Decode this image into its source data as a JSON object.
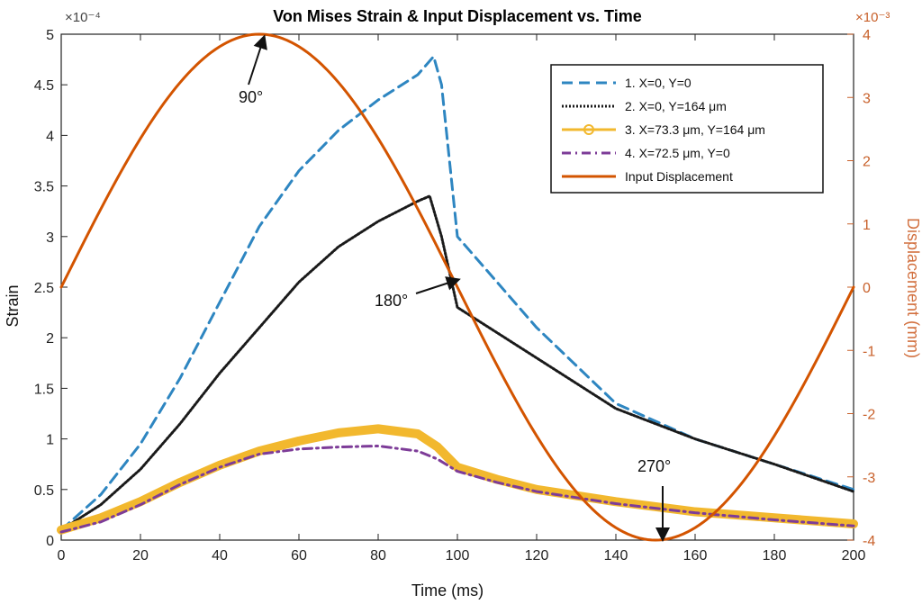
{
  "chart_data": {
    "type": "line",
    "title": "Von Mises Strain & Input Displacement vs. Time",
    "xlabel": "Time (ms)",
    "ylabel": "Strain",
    "y2label": "Displacement (mm)",
    "xlim": [
      0,
      200
    ],
    "ylim": [
      0,
      5
    ],
    "y2lim": [
      -4,
      4
    ],
    "y_multiplier": "×10⁻⁴",
    "y2_multiplier": "×10⁻³",
    "x_ticks": [
      0,
      20,
      40,
      60,
      80,
      100,
      120,
      140,
      160,
      180,
      200
    ],
    "y_ticks": [
      0,
      0.5,
      1,
      1.5,
      2,
      2.5,
      3,
      3.5,
      4,
      4.5,
      5
    ],
    "y_tick_labels": [
      "0",
      "0.5",
      "1",
      "1.5",
      "2",
      "2.5",
      "3",
      "3.5",
      "4",
      "4.5",
      "5"
    ],
    "y2_ticks": [
      -4,
      -3,
      -2,
      -1,
      0,
      1,
      2,
      3,
      4
    ],
    "y2_tick_labels": [
      "-4",
      "-3",
      "-2",
      "-1",
      "0",
      "1",
      "2",
      "3",
      "4"
    ],
    "legend_position": "top-right",
    "series": [
      {
        "name": "1. X=0, Y=0",
        "axis": "left",
        "color": "#2e86c1",
        "style": "dashed",
        "x": [
          0,
          10,
          20,
          30,
          40,
          50,
          60,
          70,
          80,
          90,
          94,
          96,
          100,
          110,
          120,
          140,
          160,
          180,
          200
        ],
        "y": [
          0.1,
          0.45,
          0.95,
          1.6,
          2.35,
          3.1,
          3.65,
          4.05,
          4.35,
          4.6,
          4.78,
          4.5,
          3.0,
          2.55,
          2.1,
          1.35,
          1.0,
          0.75,
          0.5
        ]
      },
      {
        "name": "2. X=0, Y=164 μm",
        "axis": "left",
        "color": "#1a1a1a",
        "style": "dotted",
        "x": [
          0,
          10,
          20,
          30,
          40,
          50,
          60,
          70,
          80,
          90,
          93,
          96,
          100,
          110,
          120,
          140,
          160,
          180,
          200
        ],
        "y": [
          0.1,
          0.35,
          0.7,
          1.15,
          1.65,
          2.1,
          2.55,
          2.9,
          3.15,
          3.35,
          3.4,
          3.0,
          2.3,
          2.05,
          1.8,
          1.3,
          1.0,
          0.75,
          0.48
        ]
      },
      {
        "name": "3. X=73.3 μm, Y=164 μm",
        "axis": "left",
        "color": "#f2b82e",
        "style": "thick",
        "x": [
          0,
          10,
          20,
          30,
          40,
          50,
          60,
          70,
          80,
          90,
          95,
          100,
          110,
          120,
          140,
          160,
          180,
          200
        ],
        "y": [
          0.1,
          0.22,
          0.38,
          0.57,
          0.74,
          0.88,
          0.98,
          1.06,
          1.1,
          1.05,
          0.92,
          0.72,
          0.6,
          0.5,
          0.38,
          0.28,
          0.22,
          0.16
        ]
      },
      {
        "name": "4. X=72.5 μm, Y=0",
        "axis": "left",
        "color": "#7d3c98",
        "style": "dashdot",
        "x": [
          0,
          10,
          20,
          30,
          40,
          50,
          60,
          70,
          80,
          90,
          95,
          100,
          110,
          120,
          140,
          160,
          180,
          200
        ],
        "y": [
          0.08,
          0.18,
          0.35,
          0.55,
          0.72,
          0.85,
          0.9,
          0.92,
          0.93,
          0.88,
          0.8,
          0.68,
          0.57,
          0.48,
          0.36,
          0.27,
          0.2,
          0.14
        ]
      },
      {
        "name": "Input Displacement",
        "axis": "right",
        "color": "#d35400",
        "style": "solid",
        "function": "4*sin(2*pi*t/200)",
        "x": [
          0,
          10,
          20,
          30,
          40,
          50,
          60,
          70,
          80,
          90,
          100,
          110,
          120,
          130,
          140,
          150,
          160,
          170,
          180,
          190,
          200
        ],
        "y": [
          0,
          1.236,
          2.351,
          3.236,
          3.804,
          4.0,
          3.804,
          3.236,
          2.351,
          1.236,
          0,
          -1.236,
          -2.351,
          -3.236,
          -3.804,
          -4.0,
          -3.804,
          -3.236,
          -2.351,
          -1.236,
          0
        ]
      }
    ],
    "annotations": [
      {
        "text": "90°",
        "x": 50,
        "y2": 4.0
      },
      {
        "text": "180°",
        "x": 100,
        "y2": 0
      },
      {
        "text": "270°",
        "x": 150,
        "y2": -4.0
      }
    ]
  }
}
